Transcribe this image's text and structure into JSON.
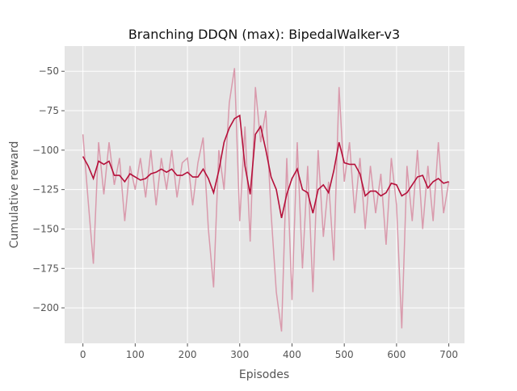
{
  "chart_data": {
    "type": "line",
    "title": "Branching DDQN (max): BipedalWalker-v3",
    "xlabel": "Episodes",
    "ylabel": "Cumulative reward",
    "x": [
      0,
      10,
      20,
      30,
      40,
      50,
      60,
      70,
      80,
      90,
      100,
      110,
      120,
      130,
      140,
      150,
      160,
      170,
      180,
      190,
      200,
      210,
      220,
      230,
      240,
      250,
      260,
      270,
      280,
      290,
      300,
      310,
      320,
      330,
      340,
      350,
      360,
      370,
      380,
      390,
      400,
      410,
      420,
      430,
      440,
      450,
      460,
      470,
      480,
      490,
      500,
      510,
      520,
      530,
      540,
      550,
      560,
      570,
      580,
      590,
      600,
      610,
      620,
      630,
      640,
      650,
      660,
      670,
      680,
      690,
      700
    ],
    "series": [
      {
        "color": "#d99aac",
        "values": [
          -90,
          -132,
          -172,
          -95,
          -128,
          -95,
          -122,
          -105,
          -145,
          -110,
          -125,
          -105,
          -130,
          -100,
          -135,
          -105,
          -125,
          -100,
          -130,
          -108,
          -105,
          -135,
          -108,
          -92,
          -150,
          -187,
          -100,
          -125,
          -70,
          -48,
          -145,
          -85,
          -158,
          -60,
          -95,
          -75,
          -140,
          -190,
          -215,
          -105,
          -195,
          -95,
          -175,
          -110,
          -190,
          -100,
          -155,
          -120,
          -170,
          -60,
          -120,
          -95,
          -140,
          -105,
          -150,
          -110,
          -140,
          -115,
          -160,
          -105,
          -135,
          -213,
          -110,
          -145,
          -100,
          -150,
          -110,
          -145,
          -95,
          -140,
          -120
        ]
      },
      {
        "color": "#b5103a",
        "values": [
          -104,
          -110,
          -118,
          -107,
          -109,
          -107,
          -116,
          -116,
          -120,
          -115,
          -117,
          -119,
          -118,
          -115,
          -114,
          -112,
          -114,
          -112,
          -116,
          -116,
          -114,
          -117,
          -117,
          -112,
          -118,
          -127,
          -113,
          -95,
          -86,
          -80,
          -78,
          -110,
          -128,
          -90,
          -85,
          -100,
          -117,
          -125,
          -143,
          -128,
          -118,
          -112,
          -125,
          -127,
          -140,
          -125,
          -122,
          -127,
          -113,
          -95,
          -108,
          -109,
          -109,
          -115,
          -129,
          -126,
          -126,
          -129,
          -127,
          -121,
          -122,
          -129,
          -127,
          -122,
          -117,
          -116,
          -124,
          -120,
          -118,
          -121,
          -120
        ]
      }
    ],
    "xlim": [
      -35,
      730
    ],
    "ylim": [
      -222.5,
      -34
    ],
    "xticks": [
      0,
      100,
      200,
      300,
      400,
      500,
      600,
      700
    ],
    "yticks": [
      {
        "value": -200,
        "label": "−200"
      },
      {
        "value": -175,
        "label": "−175"
      },
      {
        "value": -150,
        "label": "−150"
      },
      {
        "value": -125,
        "label": "−125"
      },
      {
        "value": -100,
        "label": "−100"
      },
      {
        "value": -75,
        "label": "−75"
      },
      {
        "value": -50,
        "label": "−50"
      }
    ],
    "grid": true,
    "background": "#e5e5e5"
  }
}
